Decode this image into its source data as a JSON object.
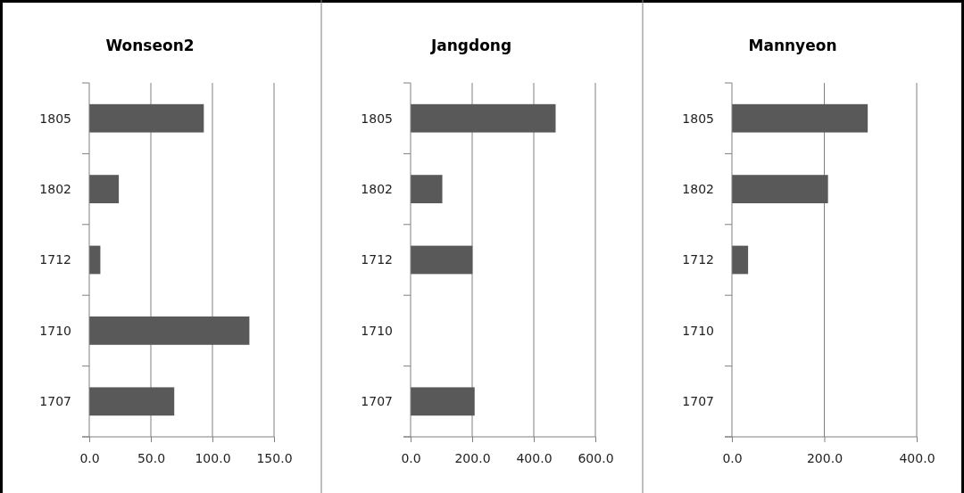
{
  "chart_data": [
    {
      "type": "bar",
      "orientation": "horizontal",
      "title": "Wonseon2",
      "categories": [
        "1805",
        "1802",
        "1712",
        "1710",
        "1707"
      ],
      "values": [
        93,
        24,
        9,
        130,
        69
      ],
      "color": "#595959",
      "xlim": [
        0,
        150
      ],
      "xticks": [
        {
          "value": 0,
          "label": "0.0"
        },
        {
          "value": 50,
          "label": "50.0"
        },
        {
          "value": 100,
          "label": "100.0"
        },
        {
          "value": 150,
          "label": "150.0"
        }
      ],
      "grid": "x"
    },
    {
      "type": "bar",
      "orientation": "horizontal",
      "title": "Jangdong",
      "categories": [
        "1805",
        "1802",
        "1712",
        "1710",
        "1707"
      ],
      "values": [
        471,
        103,
        201,
        null,
        208
      ],
      "color": "#595959",
      "xlim": [
        0,
        600
      ],
      "xticks": [
        {
          "value": 0,
          "label": "0.0"
        },
        {
          "value": 200,
          "label": "200.0"
        },
        {
          "value": 400,
          "label": "400.0"
        },
        {
          "value": 600,
          "label": "600.0"
        }
      ],
      "grid": "x"
    },
    {
      "type": "bar",
      "orientation": "horizontal",
      "title": "Mannyeon",
      "categories": [
        "1805",
        "1802",
        "1712",
        "1710",
        "1707"
      ],
      "values": [
        294,
        208,
        35,
        null,
        null
      ],
      "color": "#595959",
      "xlim": [
        0,
        400
      ],
      "xticks": [
        {
          "value": 0,
          "label": "0.0"
        },
        {
          "value": 200,
          "label": "200.0"
        },
        {
          "value": 400,
          "label": "400.0"
        }
      ],
      "grid": "x"
    }
  ]
}
